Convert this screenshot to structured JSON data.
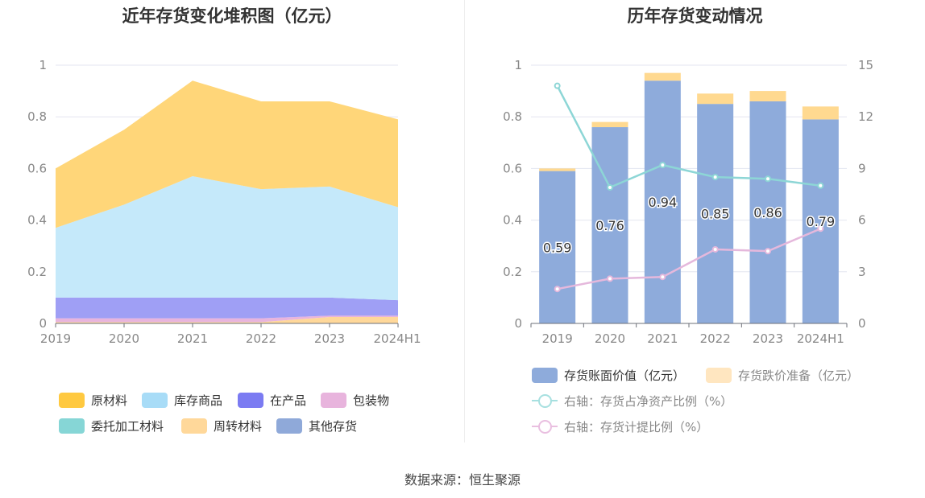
{
  "left": {
    "title": "近年存货变化堆积图（亿元）",
    "legend": [
      {
        "label": "原材料",
        "color": "#ffc940"
      },
      {
        "label": "库存商品",
        "color": "#a8dcf7"
      },
      {
        "label": "在产品",
        "color": "#7b7bf2"
      },
      {
        "label": "包装物",
        "color": "#e8b4dd"
      },
      {
        "label": "委托加工材料",
        "color": "#86d6d6"
      },
      {
        "label": "周转材料",
        "color": "#ffd89a"
      },
      {
        "label": "其他存货",
        "color": "#8fa9d9"
      }
    ]
  },
  "right": {
    "title": "历年存货变动情况",
    "legend": [
      {
        "label": "存货账面价值（亿元）",
        "color": "#8eabdb"
      },
      {
        "label": "存货跌价准备（亿元）",
        "color": "#ffe6c0"
      },
      {
        "label": "右轴：存货占净资产比例（%）",
        "color": "#a7e0e0"
      },
      {
        "label": "右轴：存货计提比例（%）",
        "color": "#e9bfe0"
      }
    ]
  },
  "source": "数据来源：恒生聚源",
  "chart_data": [
    {
      "type": "area",
      "title": "近年存货变化堆积图（亿元）",
      "stacked": true,
      "categories": [
        "2019",
        "2020",
        "2021",
        "2022",
        "2023",
        "2024H1"
      ],
      "ylim": [
        0,
        1
      ],
      "yticks": [
        "0",
        "0.2",
        "0.4",
        "0.6",
        "0.8",
        "1"
      ],
      "grid": true,
      "legend_position": "bottom",
      "series": [
        {
          "name": "其他存货",
          "color": "#8fa9d9",
          "values": [
            0,
            0,
            0,
            0,
            0,
            0
          ]
        },
        {
          "name": "周转材料",
          "color": "#ffd89a",
          "values": [
            0.005,
            0.005,
            0.005,
            0.005,
            0.025,
            0.025
          ]
        },
        {
          "name": "委托加工材料",
          "color": "#86d6d6",
          "values": [
            0,
            0,
            0,
            0,
            0,
            0
          ]
        },
        {
          "name": "包装物",
          "color": "#e8b4dd",
          "values": [
            0.015,
            0.015,
            0.015,
            0.015,
            0.005,
            0.005
          ]
        },
        {
          "name": "在产品",
          "color": "#9f9ff5",
          "values": [
            0.08,
            0.08,
            0.08,
            0.08,
            0.07,
            0.06
          ]
        },
        {
          "name": "库存商品",
          "color": "#c5e9fa",
          "values": [
            0.27,
            0.36,
            0.47,
            0.42,
            0.43,
            0.36
          ]
        },
        {
          "name": "原材料",
          "color": "#ffd679",
          "values": [
            0.23,
            0.29,
            0.37,
            0.34,
            0.33,
            0.34
          ]
        }
      ]
    },
    {
      "type": "bar",
      "title": "历年存货变动情况",
      "stacked": true,
      "categories": [
        "2019",
        "2020",
        "2021",
        "2022",
        "2023",
        "2024H1"
      ],
      "ylim": [
        0,
        1
      ],
      "yticks": [
        "0",
        "0.2",
        "0.4",
        "0.6",
        "0.8",
        "1"
      ],
      "y2lim": [
        0,
        15
      ],
      "y2ticks": [
        "0",
        "3",
        "6",
        "9",
        "12",
        "15"
      ],
      "grid": true,
      "legend_position": "bottom",
      "series": [
        {
          "name": "存货账面价值（亿元）",
          "kind": "bar",
          "color": "#8eabdb",
          "values": [
            0.59,
            0.76,
            0.94,
            0.85,
            0.86,
            0.79
          ],
          "labels": [
            "0.59",
            "0.76",
            "0.94",
            "0.85",
            "0.86",
            "0.79"
          ]
        },
        {
          "name": "存货跌价准备（亿元）",
          "kind": "bar",
          "color": "#ffd990",
          "values": [
            0.01,
            0.02,
            0.03,
            0.04,
            0.04,
            0.05
          ]
        },
        {
          "name": "右轴：存货占净资产比例（%）",
          "kind": "line",
          "axis": "right",
          "color": "#8dd6d6",
          "values": [
            13.8,
            7.9,
            9.2,
            8.5,
            8.4,
            8.0
          ]
        },
        {
          "name": "右轴：存货计提比例（%）",
          "kind": "line",
          "axis": "right",
          "color": "#e5b8dc",
          "values": [
            2.0,
            2.6,
            2.7,
            4.3,
            4.2,
            5.5
          ]
        }
      ]
    }
  ]
}
